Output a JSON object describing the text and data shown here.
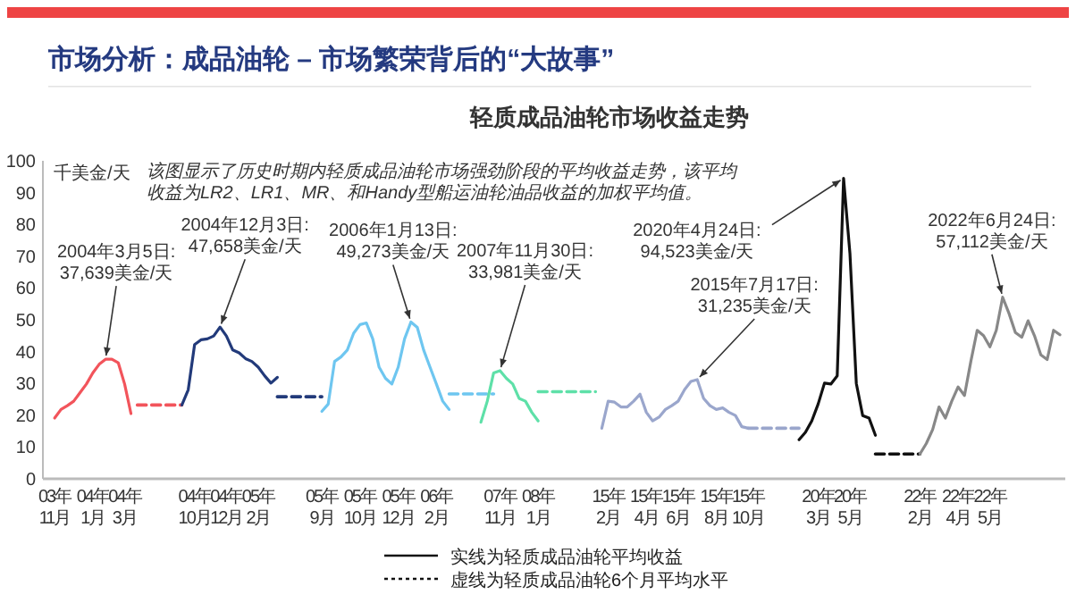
{
  "chart_data": {
    "type": "line",
    "title": "市场分析：成品油轮 – 市场繁荣背后的“大故事”",
    "subtitle": "轻质成品油轮市场收益走势",
    "ylabel": "千美金/天",
    "ylim": [
      0,
      100
    ],
    "yticks": [
      0,
      10,
      20,
      30,
      40,
      50,
      60,
      70,
      80,
      90,
      100
    ],
    "categories": [
      null,
      "03年\n11月",
      null,
      null,
      null,
      null,
      null,
      "04年\n1月",
      null,
      null,
      null,
      null,
      "04年\n3月",
      null,
      null,
      null,
      null,
      null,
      null,
      null,
      null,
      null,
      null,
      "04年\n10月",
      null,
      null,
      null,
      null,
      "04年\n12月",
      null,
      null,
      null,
      null,
      "05年\n2月",
      null,
      null,
      null,
      null,
      null,
      null,
      null,
      null,
      null,
      "05年\n9月",
      null,
      null,
      null,
      null,
      null,
      "05年\n10月",
      null,
      null,
      null,
      null,
      null,
      "05年\n12月",
      null,
      null,
      null,
      null,
      null,
      "06年\n2月",
      null,
      null,
      null,
      null,
      null,
      null,
      null,
      null,
      null,
      "07年\n11月",
      null,
      null,
      null,
      null,
      null,
      "08年\n1月",
      null,
      null,
      null,
      null,
      null,
      null,
      null,
      null,
      null,
      null,
      "15年\n2月",
      null,
      null,
      null,
      null,
      null,
      "15年\n4月",
      null,
      null,
      null,
      null,
      "15年\n6月",
      null,
      null,
      null,
      null,
      null,
      "15年\n8月",
      null,
      null,
      null,
      null,
      "15年\n10月",
      null,
      null,
      null,
      null,
      null,
      null,
      null,
      null,
      null,
      null,
      "20年\n3月",
      null,
      null,
      null,
      null,
      "20年\n5月",
      null,
      null,
      null,
      null,
      null,
      null,
      null,
      null,
      null,
      null,
      "22年\n2月",
      null,
      null,
      null,
      null,
      null,
      "22年\n4月",
      null,
      null,
      null,
      null,
      "22年\n5月",
      null,
      null,
      null,
      null,
      null,
      null,
      null,
      null,
      null,
      null,
      null
    ],
    "series": [
      {
        "color": "#f2545b",
        "line_style": "solid",
        "values": [
          null,
          19.1,
          21.8,
          23.0,
          24.4,
          27.1,
          29.8,
          33.3,
          36.0,
          37.6,
          37.6,
          36.5,
          29.8,
          20.5,
          null,
          null,
          null,
          null,
          null,
          null,
          null,
          null,
          null,
          null,
          null,
          null,
          null,
          null,
          null,
          null,
          null,
          null,
          null,
          null,
          null,
          null,
          null,
          null,
          null,
          null,
          null,
          null,
          null,
          null,
          null,
          null,
          null,
          null,
          null,
          null,
          null,
          null,
          null,
          null,
          null,
          null,
          null,
          null,
          null,
          null,
          null,
          null,
          null,
          null,
          null,
          null,
          null,
          null,
          null,
          null,
          null,
          null,
          null,
          null,
          null,
          null,
          null,
          null,
          null,
          null,
          null,
          null,
          null,
          null,
          null,
          null,
          null,
          null,
          null,
          null,
          null,
          null,
          null,
          null,
          null,
          null,
          null,
          null,
          null,
          null,
          null,
          null,
          null,
          null,
          null,
          null,
          null,
          null,
          null,
          null,
          null,
          null,
          null,
          null,
          null,
          null,
          null,
          null,
          null,
          null,
          null,
          null,
          null,
          null,
          null,
          null,
          null,
          null,
          null,
          null,
          null,
          null,
          null,
          null,
          null,
          null,
          null,
          null,
          null,
          null,
          null,
          null,
          null,
          null,
          null,
          null,
          null,
          null,
          null,
          null,
          null,
          null,
          null,
          null,
          null,
          null,
          null,
          null,
          null,
          null
        ]
      },
      {
        "color": "#f2545b",
        "line_style": "dashed",
        "values": [
          null,
          null,
          null,
          null,
          null,
          null,
          null,
          null,
          null,
          null,
          null,
          null,
          null,
          null,
          23.2,
          23.2,
          23.2,
          23.2,
          23.2,
          23.2,
          23.2,
          23.2,
          null,
          null,
          null,
          null,
          null,
          null,
          null,
          null,
          null,
          null,
          null,
          null,
          null,
          null,
          null,
          null,
          null,
          null,
          null,
          null,
          null,
          null,
          null,
          null,
          null,
          null,
          null,
          null,
          null,
          null,
          null,
          null,
          null,
          null,
          null,
          null,
          null,
          null,
          null,
          null,
          null,
          null,
          null,
          null,
          null,
          null,
          null,
          null,
          null,
          null,
          null,
          null,
          null,
          null,
          null,
          null,
          null,
          null,
          null,
          null,
          null,
          null,
          null,
          null,
          null,
          null,
          null,
          null,
          null,
          null,
          null,
          null,
          null,
          null,
          null,
          null,
          null,
          null,
          null,
          null,
          null,
          null,
          null,
          null,
          null,
          null,
          null,
          null,
          null,
          null,
          null,
          null,
          null,
          null,
          null,
          null,
          null,
          null,
          null,
          null,
          null,
          null,
          null,
          null,
          null,
          null,
          null,
          null,
          null,
          null,
          null,
          null,
          null,
          null,
          null,
          null,
          null,
          null,
          null,
          null,
          null,
          null,
          null,
          null,
          null,
          null,
          null,
          null,
          null,
          null,
          null,
          null,
          null,
          null,
          null,
          null,
          null,
          null
        ]
      },
      {
        "color": "#223a7a",
        "line_style": "solid",
        "values": [
          null,
          null,
          null,
          null,
          null,
          null,
          null,
          null,
          null,
          null,
          null,
          null,
          null,
          null,
          null,
          null,
          null,
          null,
          null,
          null,
          null,
          23.2,
          28.0,
          42.2,
          43.7,
          44.0,
          44.9,
          47.7,
          44.9,
          40.5,
          39.6,
          37.8,
          36.9,
          35.1,
          32.4,
          30.1,
          31.9,
          null,
          null,
          null,
          null,
          null,
          null,
          null,
          null,
          null,
          null,
          null,
          null,
          null,
          null,
          null,
          null,
          null,
          null,
          null,
          null,
          null,
          null,
          null,
          null,
          null,
          null,
          null,
          null,
          null,
          null,
          null,
          null,
          null,
          null,
          null,
          null,
          null,
          null,
          null,
          null,
          null,
          null,
          null,
          null,
          null,
          null,
          null,
          null,
          null,
          null,
          null,
          null,
          null,
          null,
          null,
          null,
          null,
          null,
          null,
          null,
          null,
          null,
          null,
          null,
          null,
          null,
          null,
          null,
          null,
          null,
          null,
          null,
          null,
          null,
          null,
          null,
          null,
          null,
          null,
          null,
          null,
          null,
          null,
          null,
          null,
          null,
          null,
          null,
          null,
          null,
          null,
          null,
          null,
          null,
          null,
          null,
          null,
          null,
          null,
          null,
          null,
          null,
          null,
          null,
          null,
          null,
          null,
          null,
          null,
          null,
          null,
          null,
          null,
          null,
          null,
          null,
          null,
          null,
          null,
          null,
          null,
          null,
          null
        ]
      },
      {
        "color": "#223a7a",
        "line_style": "dashed",
        "values": [
          null,
          null,
          null,
          null,
          null,
          null,
          null,
          null,
          null,
          null,
          null,
          null,
          null,
          null,
          null,
          null,
          null,
          null,
          null,
          null,
          null,
          null,
          null,
          null,
          null,
          null,
          null,
          null,
          null,
          null,
          null,
          null,
          null,
          null,
          null,
          null,
          25.8,
          25.8,
          25.8,
          25.8,
          25.8,
          25.8,
          25.8,
          25.8,
          null,
          null,
          null,
          null,
          null,
          null,
          null,
          null,
          null,
          null,
          null,
          null,
          null,
          null,
          null,
          null,
          null,
          null,
          null,
          null,
          null,
          null,
          null,
          null,
          null,
          null,
          null,
          null,
          null,
          null,
          null,
          null,
          null,
          null,
          null,
          null,
          null,
          null,
          null,
          null,
          null,
          null,
          null,
          null,
          null,
          null,
          null,
          null,
          null,
          null,
          null,
          null,
          null,
          null,
          null,
          null,
          null,
          null,
          null,
          null,
          null,
          null,
          null,
          null,
          null,
          null,
          null,
          null,
          null,
          null,
          null,
          null,
          null,
          null,
          null,
          null,
          null,
          null,
          null,
          null,
          null,
          null,
          null,
          null,
          null,
          null,
          null,
          null,
          null,
          null,
          null,
          null,
          null,
          null,
          null,
          null,
          null,
          null,
          null,
          null,
          null,
          null,
          null,
          null,
          null,
          null,
          null,
          null,
          null,
          null,
          null,
          null,
          null,
          null,
          null,
          null
        ]
      },
      {
        "color": "#6ec6f0",
        "line_style": "solid",
        "values": [
          null,
          null,
          null,
          null,
          null,
          null,
          null,
          null,
          null,
          null,
          null,
          null,
          null,
          null,
          null,
          null,
          null,
          null,
          null,
          null,
          null,
          null,
          null,
          null,
          null,
          null,
          null,
          null,
          null,
          null,
          null,
          null,
          null,
          null,
          null,
          null,
          null,
          null,
          null,
          null,
          null,
          null,
          null,
          21.2,
          23.5,
          36.9,
          38.3,
          40.5,
          45.8,
          48.5,
          49.0,
          44.0,
          35.1,
          31.6,
          29.8,
          35.1,
          44.0,
          49.3,
          47.6,
          40.5,
          35.1,
          29.8,
          24.4,
          21.8,
          null,
          null,
          null,
          null,
          null,
          null,
          null,
          null,
          null,
          null,
          null,
          null,
          null,
          null,
          null,
          null,
          null,
          null,
          null,
          null,
          null,
          null,
          null,
          null,
          null,
          null,
          null,
          null,
          null,
          null,
          null,
          null,
          null,
          null,
          null,
          null,
          null,
          null,
          null,
          null,
          null,
          null,
          null,
          null,
          null,
          null,
          null,
          null,
          null,
          null,
          null,
          null,
          null,
          null,
          null,
          null,
          null,
          null,
          null,
          null,
          null,
          null,
          null,
          null,
          null,
          null,
          null,
          null,
          null,
          null,
          null,
          null,
          null,
          null,
          null,
          null,
          null,
          null,
          null,
          null,
          null,
          null,
          null,
          null,
          null,
          null,
          null,
          null,
          null,
          null,
          null,
          null,
          null,
          null,
          null,
          null
        ]
      },
      {
        "color": "#6ec6f0",
        "line_style": "dashed",
        "values": [
          null,
          null,
          null,
          null,
          null,
          null,
          null,
          null,
          null,
          null,
          null,
          null,
          null,
          null,
          null,
          null,
          null,
          null,
          null,
          null,
          null,
          null,
          null,
          null,
          null,
          null,
          null,
          null,
          null,
          null,
          null,
          null,
          null,
          null,
          null,
          null,
          null,
          null,
          null,
          null,
          null,
          null,
          null,
          null,
          null,
          null,
          null,
          null,
          null,
          null,
          null,
          null,
          null,
          null,
          null,
          null,
          null,
          null,
          null,
          null,
          null,
          null,
          null,
          26.7,
          26.7,
          26.7,
          26.7,
          26.7,
          26.7,
          26.7,
          26.7,
          null,
          null,
          null,
          null,
          null,
          null,
          null,
          null,
          null,
          null,
          null,
          null,
          null,
          null,
          null,
          null,
          null,
          null,
          null,
          null,
          null,
          null,
          null,
          null,
          null,
          null,
          null,
          null,
          null,
          null,
          null,
          null,
          null,
          null,
          null,
          null,
          null,
          null,
          null,
          null,
          null,
          null,
          null,
          null,
          null,
          null,
          null,
          null,
          null,
          null,
          null,
          null,
          null,
          null,
          null,
          null,
          null,
          null,
          null,
          null,
          null,
          null,
          null,
          null,
          null,
          null,
          null,
          null,
          null,
          null,
          null,
          null,
          null,
          null,
          null,
          null,
          null,
          null,
          null,
          null,
          null,
          null,
          null,
          null,
          null,
          null,
          null,
          null,
          null
        ]
      },
      {
        "color": "#5ee0a8",
        "line_style": "solid",
        "values": [
          null,
          null,
          null,
          null,
          null,
          null,
          null,
          null,
          null,
          null,
          null,
          null,
          null,
          null,
          null,
          null,
          null,
          null,
          null,
          null,
          null,
          null,
          null,
          null,
          null,
          null,
          null,
          null,
          null,
          null,
          null,
          null,
          null,
          null,
          null,
          null,
          null,
          null,
          null,
          null,
          null,
          null,
          null,
          null,
          null,
          null,
          null,
          null,
          null,
          null,
          null,
          null,
          null,
          null,
          null,
          null,
          null,
          null,
          null,
          null,
          null,
          null,
          null,
          null,
          null,
          null,
          null,
          null,
          17.8,
          24.4,
          33.3,
          34.0,
          31.6,
          29.8,
          25.3,
          24.4,
          20.9,
          18.2,
          null,
          null,
          null,
          null,
          null,
          null,
          null,
          null,
          null,
          null,
          null,
          null,
          null,
          null,
          null,
          null,
          null,
          null,
          null,
          null,
          null,
          null,
          null,
          null,
          null,
          null,
          null,
          null,
          null,
          null,
          null,
          null,
          null,
          null,
          null,
          null,
          null,
          null,
          null,
          null,
          null,
          null,
          null,
          null,
          null,
          null,
          null,
          null,
          null,
          null,
          null,
          null,
          null,
          null,
          null,
          null,
          null,
          null,
          null,
          null,
          null,
          null,
          null,
          null,
          null,
          null,
          null,
          null,
          null,
          null,
          null,
          null,
          null,
          null,
          null,
          null,
          null,
          null,
          null,
          null,
          null,
          null
        ]
      },
      {
        "color": "#5ee0a8",
        "line_style": "dashed",
        "values": [
          null,
          null,
          null,
          null,
          null,
          null,
          null,
          null,
          null,
          null,
          null,
          null,
          null,
          null,
          null,
          null,
          null,
          null,
          null,
          null,
          null,
          null,
          null,
          null,
          null,
          null,
          null,
          null,
          null,
          null,
          null,
          null,
          null,
          null,
          null,
          null,
          null,
          null,
          null,
          null,
          null,
          null,
          null,
          null,
          null,
          null,
          null,
          null,
          null,
          null,
          null,
          null,
          null,
          null,
          null,
          null,
          null,
          null,
          null,
          null,
          null,
          null,
          null,
          null,
          null,
          null,
          null,
          null,
          null,
          null,
          null,
          null,
          null,
          null,
          null,
          null,
          null,
          27.4,
          27.4,
          27.4,
          27.4,
          27.4,
          27.4,
          27.4,
          27.4,
          27.4,
          27.4,
          null,
          null,
          null,
          null,
          null,
          null,
          null,
          null,
          null,
          null,
          null,
          null,
          null,
          null,
          null,
          null,
          null,
          null,
          null,
          null,
          null,
          null,
          null,
          null,
          null,
          null,
          null,
          null,
          null,
          null,
          null,
          null,
          null,
          null,
          null,
          null,
          null,
          null,
          null,
          null,
          null,
          null,
          null,
          null,
          null,
          null,
          null,
          null,
          null,
          null,
          null,
          null,
          null,
          null,
          null,
          null,
          null,
          null,
          null,
          null,
          null,
          null,
          null,
          null,
          null,
          null,
          null,
          null,
          null,
          null,
          null,
          null,
          null
        ]
      },
      {
        "color": "#9aa6cc",
        "line_style": "solid",
        "values": [
          null,
          null,
          null,
          null,
          null,
          null,
          null,
          null,
          null,
          null,
          null,
          null,
          null,
          null,
          null,
          null,
          null,
          null,
          null,
          null,
          null,
          null,
          null,
          null,
          null,
          null,
          null,
          null,
          null,
          null,
          null,
          null,
          null,
          null,
          null,
          null,
          null,
          null,
          null,
          null,
          null,
          null,
          null,
          null,
          null,
          null,
          null,
          null,
          null,
          null,
          null,
          null,
          null,
          null,
          null,
          null,
          null,
          null,
          null,
          null,
          null,
          null,
          null,
          null,
          null,
          null,
          null,
          null,
          null,
          null,
          null,
          null,
          null,
          null,
          null,
          null,
          null,
          null,
          null,
          null,
          null,
          null,
          null,
          null,
          null,
          null,
          null,
          15.9,
          24.4,
          24.1,
          22.6,
          22.6,
          24.4,
          26.6,
          20.9,
          18.2,
          19.4,
          21.8,
          23.0,
          24.4,
          28.0,
          30.6,
          31.2,
          25.3,
          23.0,
          21.8,
          22.3,
          20.9,
          19.9,
          16.4,
          15.9,
          null,
          null,
          null,
          null,
          null,
          null,
          null,
          null,
          null,
          null,
          null,
          null,
          null,
          null,
          null,
          null,
          null,
          null,
          null,
          null,
          null,
          null,
          null,
          null,
          null,
          null,
          null,
          null,
          null,
          null,
          null,
          null,
          null,
          null,
          null,
          null,
          null,
          null,
          null,
          null,
          null,
          null,
          null,
          null,
          null,
          null,
          null,
          null,
          null
        ]
      },
      {
        "color": "#9aa6cc",
        "line_style": "dashed",
        "values": [
          null,
          null,
          null,
          null,
          null,
          null,
          null,
          null,
          null,
          null,
          null,
          null,
          null,
          null,
          null,
          null,
          null,
          null,
          null,
          null,
          null,
          null,
          null,
          null,
          null,
          null,
          null,
          null,
          null,
          null,
          null,
          null,
          null,
          null,
          null,
          null,
          null,
          null,
          null,
          null,
          null,
          null,
          null,
          null,
          null,
          null,
          null,
          null,
          null,
          null,
          null,
          null,
          null,
          null,
          null,
          null,
          null,
          null,
          null,
          null,
          null,
          null,
          null,
          null,
          null,
          null,
          null,
          null,
          null,
          null,
          null,
          null,
          null,
          null,
          null,
          null,
          null,
          null,
          null,
          null,
          null,
          null,
          null,
          null,
          null,
          null,
          null,
          null,
          null,
          null,
          null,
          null,
          null,
          null,
          null,
          null,
          null,
          null,
          null,
          null,
          null,
          null,
          null,
          null,
          null,
          null,
          null,
          null,
          null,
          null,
          15.9,
          15.9,
          15.9,
          15.9,
          15.9,
          15.9,
          15.9,
          15.9,
          15.9,
          null,
          null,
          null,
          null,
          null,
          null,
          null,
          null,
          null,
          null,
          null,
          null,
          null,
          null,
          null,
          null,
          null,
          null,
          null,
          null,
          null,
          null,
          null,
          null,
          null,
          null,
          null,
          null,
          null,
          null,
          null,
          null,
          null,
          null,
          null,
          null,
          null,
          null,
          null,
          null,
          null
        ]
      },
      {
        "color": "#111111",
        "line_style": "solid",
        "values": [
          null,
          null,
          null,
          null,
          null,
          null,
          null,
          null,
          null,
          null,
          null,
          null,
          null,
          null,
          null,
          null,
          null,
          null,
          null,
          null,
          null,
          null,
          null,
          null,
          null,
          null,
          null,
          null,
          null,
          null,
          null,
          null,
          null,
          null,
          null,
          null,
          null,
          null,
          null,
          null,
          null,
          null,
          null,
          null,
          null,
          null,
          null,
          null,
          null,
          null,
          null,
          null,
          null,
          null,
          null,
          null,
          null,
          null,
          null,
          null,
          null,
          null,
          null,
          null,
          null,
          null,
          null,
          null,
          null,
          null,
          null,
          null,
          null,
          null,
          null,
          null,
          null,
          null,
          null,
          null,
          null,
          null,
          null,
          null,
          null,
          null,
          null,
          null,
          null,
          null,
          null,
          null,
          null,
          null,
          null,
          null,
          null,
          null,
          null,
          null,
          null,
          null,
          null,
          null,
          null,
          null,
          null,
          null,
          null,
          null,
          null,
          null,
          null,
          null,
          null,
          null,
          null,
          null,
          12.3,
          14.6,
          18.2,
          23.5,
          30.1,
          29.8,
          32.4,
          94.5,
          70.8,
          30.0,
          19.9,
          19.1,
          13.7,
          null,
          null,
          null,
          null,
          null,
          null,
          null,
          null,
          null,
          null,
          null,
          null,
          null,
          null,
          null,
          null,
          null,
          null,
          null,
          null,
          null,
          null,
          null,
          null,
          null,
          null,
          null,
          null,
          null
        ]
      },
      {
        "color": "#111111",
        "line_style": "dashed",
        "values": [
          null,
          null,
          null,
          null,
          null,
          null,
          null,
          null,
          null,
          null,
          null,
          null,
          null,
          null,
          null,
          null,
          null,
          null,
          null,
          null,
          null,
          null,
          null,
          null,
          null,
          null,
          null,
          null,
          null,
          null,
          null,
          null,
          null,
          null,
          null,
          null,
          null,
          null,
          null,
          null,
          null,
          null,
          null,
          null,
          null,
          null,
          null,
          null,
          null,
          null,
          null,
          null,
          null,
          null,
          null,
          null,
          null,
          null,
          null,
          null,
          null,
          null,
          null,
          null,
          null,
          null,
          null,
          null,
          null,
          null,
          null,
          null,
          null,
          null,
          null,
          null,
          null,
          null,
          null,
          null,
          null,
          null,
          null,
          null,
          null,
          null,
          null,
          null,
          null,
          null,
          null,
          null,
          null,
          null,
          null,
          null,
          null,
          null,
          null,
          null,
          null,
          null,
          null,
          null,
          null,
          null,
          null,
          null,
          null,
          null,
          null,
          null,
          null,
          null,
          null,
          null,
          null,
          null,
          null,
          null,
          null,
          null,
          null,
          null,
          null,
          null,
          null,
          null,
          null,
          null,
          7.8,
          7.8,
          7.8,
          7.8,
          7.8,
          7.8,
          7.8,
          7.8,
          null,
          null,
          null,
          null,
          null,
          null,
          null,
          null,
          null,
          null,
          null,
          null,
          null,
          null,
          null,
          null,
          null,
          null,
          null,
          null,
          null,
          null
        ]
      },
      {
        "color": "#888888",
        "line_style": "solid",
        "values": [
          null,
          null,
          null,
          null,
          null,
          null,
          null,
          null,
          null,
          null,
          null,
          null,
          null,
          null,
          null,
          null,
          null,
          null,
          null,
          null,
          null,
          null,
          null,
          null,
          null,
          null,
          null,
          null,
          null,
          null,
          null,
          null,
          null,
          null,
          null,
          null,
          null,
          null,
          null,
          null,
          null,
          null,
          null,
          null,
          null,
          null,
          null,
          null,
          null,
          null,
          null,
          null,
          null,
          null,
          null,
          null,
          null,
          null,
          null,
          null,
          null,
          null,
          null,
          null,
          null,
          null,
          null,
          null,
          null,
          null,
          null,
          null,
          null,
          null,
          null,
          null,
          null,
          null,
          null,
          null,
          null,
          null,
          null,
          null,
          null,
          null,
          null,
          null,
          null,
          null,
          null,
          null,
          null,
          null,
          null,
          null,
          null,
          null,
          null,
          null,
          null,
          null,
          null,
          null,
          null,
          null,
          null,
          null,
          null,
          null,
          null,
          null,
          null,
          null,
          null,
          null,
          null,
          null,
          null,
          null,
          null,
          null,
          null,
          null,
          null,
          null,
          null,
          null,
          null,
          null,
          null,
          null,
          null,
          null,
          null,
          null,
          null,
          7.8,
          11.1,
          15.5,
          22.6,
          19.1,
          24.4,
          28.9,
          26.2,
          36.9,
          46.7,
          45.0,
          41.5,
          46.7,
          57.1,
          52.0,
          46.0,
          44.5,
          49.7,
          45.0,
          39.0,
          37.5,
          46.7,
          45.3
        ]
      }
    ],
    "annotations": [
      "该图显示了历史时期内轻质成品油轮市场强劲阶段的平均收益走势，该平均收益为LR2、LR1、MR、和Handy型船运油轮油品收益的加权平均值。",
      "实线为轻质成品油轮平均收益",
      "虚线为轻质成品油轮6个月平均水平",
      "2004年3月5日:\n37,639美金/天",
      "2004年12月3日:\n47,658美金/天",
      "2006年1月13日:\n49,273美金/天",
      {
        "text": "2007年11月30日:\n33,981美金/天",
        "x": "07年\n11月",
        "y": 34.0
      },
      "2015年7月17日:\n31,235美金/天",
      "2020年4月24日:\n94,523美金/天",
      "2022年6月24日:\n57,112美金/天"
    ]
  }
}
